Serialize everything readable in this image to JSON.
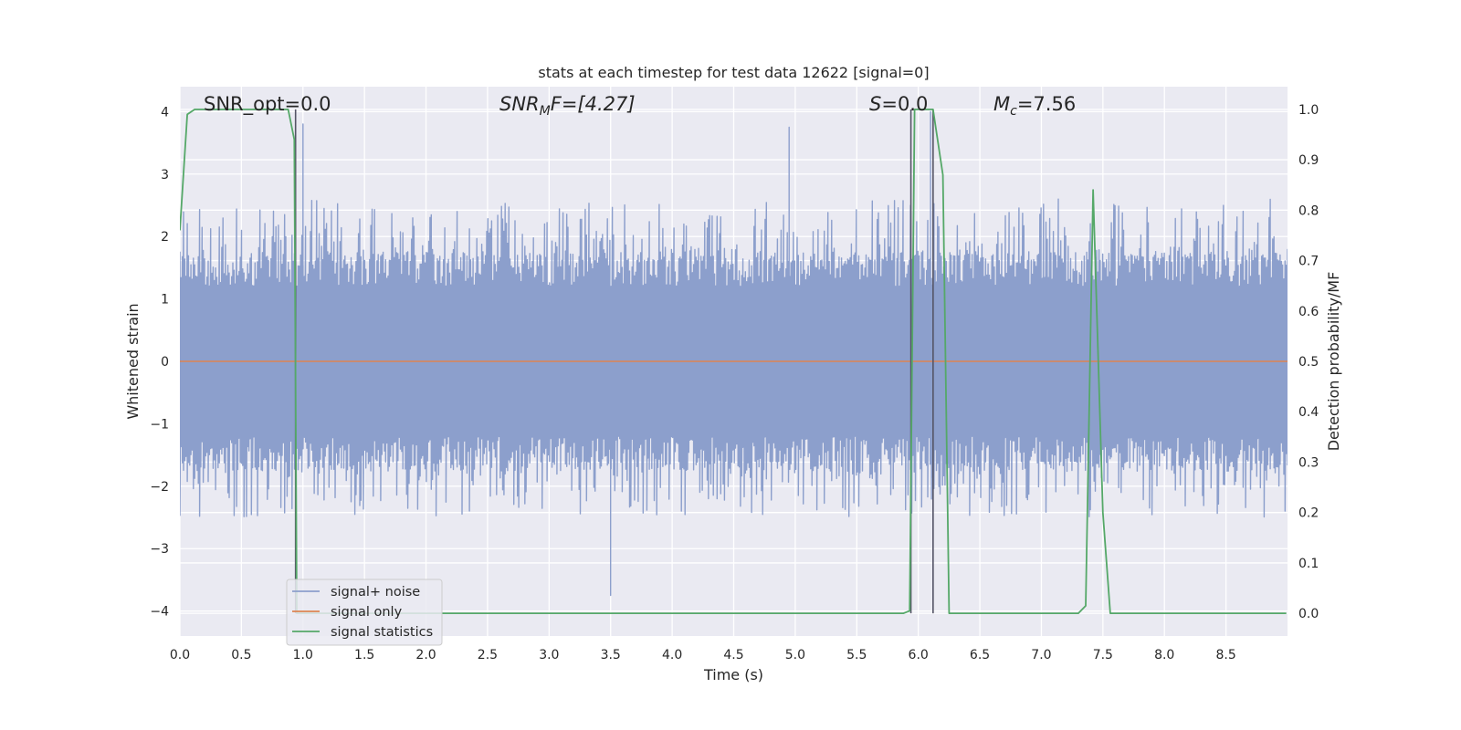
{
  "chart_data": {
    "type": "line",
    "title": "stats at each timestep for test data 12622 [signal=0]",
    "xlabel": "Time (s)",
    "ylabel_left": "Whitened strain",
    "ylabel_right": "Detection probability/MF",
    "xlim": [
      0,
      9.0
    ],
    "ylim_left": [
      -4.4,
      4.4
    ],
    "ylim_right": [
      -0.045,
      1.045
    ],
    "xticks": [
      "0.0",
      "0.5",
      "1.0",
      "1.5",
      "2.0",
      "2.5",
      "3.0",
      "3.5",
      "4.0",
      "4.5",
      "5.0",
      "5.5",
      "6.0",
      "6.5",
      "7.0",
      "7.5",
      "8.0",
      "8.5"
    ],
    "yticks_left": [
      "−4",
      "−3",
      "−2",
      "−1",
      "0",
      "1",
      "2",
      "3",
      "4"
    ],
    "yticks_right": [
      "0.0",
      "0.1",
      "0.2",
      "0.3",
      "0.4",
      "0.5",
      "0.6",
      "0.7",
      "0.8",
      "0.9",
      "1.0"
    ],
    "grid": true,
    "legend_position": "lower-left",
    "annotations": {
      "snr_opt": "SNR_opt=0.0",
      "snr_mf_base": "SNR",
      "snr_mf_sub": "M",
      "snr_mf_rest": "F=[4.27]",
      "s_sym": "S",
      "s_rest": "=0.0",
      "mc_base": "M",
      "mc_sub": "c",
      "mc_rest": "=7.56"
    },
    "series": [
      {
        "name": "signal+ noise",
        "axis": "left",
        "color": "#8c9fcc",
        "description_style": "dense noise trace",
        "amplitude_band": [
          -1.6,
          1.6
        ],
        "spike_range": [
          -3.7,
          3.8
        ],
        "sample_count": 900,
        "notable_spikes": [
          [
            1.0,
            3.8
          ],
          [
            4.95,
            3.75
          ],
          [
            6.1,
            4.0
          ],
          [
            3.5,
            -3.75
          ],
          [
            6.12,
            -4.0
          ]
        ]
      },
      {
        "name": "signal only",
        "axis": "left",
        "color": "#dd8452",
        "x": [
          0,
          9.0
        ],
        "y": [
          0,
          0
        ]
      },
      {
        "name": "signal statistics",
        "axis": "right",
        "color": "#55a868",
        "x": [
          0,
          0.06,
          0.12,
          0.5,
          0.88,
          0.93,
          0.95,
          0.97,
          1.0,
          2.0,
          3.0,
          4.0,
          5.0,
          5.88,
          5.93,
          5.97,
          6.0,
          6.12,
          6.2,
          6.25,
          6.5,
          7.0,
          7.3,
          7.36,
          7.42,
          7.5,
          7.56,
          8.0,
          8.99
        ],
        "y": [
          0.76,
          0.99,
          1.0,
          1.0,
          1.0,
          0.94,
          0.0,
          0.0,
          0.0,
          0.0,
          0.0,
          0.0,
          0.0,
          0.0,
          0.005,
          1.0,
          1.0,
          1.0,
          0.87,
          0.0,
          0.0,
          0.0,
          0.0,
          0.015,
          0.84,
          0.2,
          0.0,
          0.0,
          0.0
        ]
      }
    ],
    "vertical_markers": [
      0.94,
      5.94,
      6.12
    ]
  }
}
